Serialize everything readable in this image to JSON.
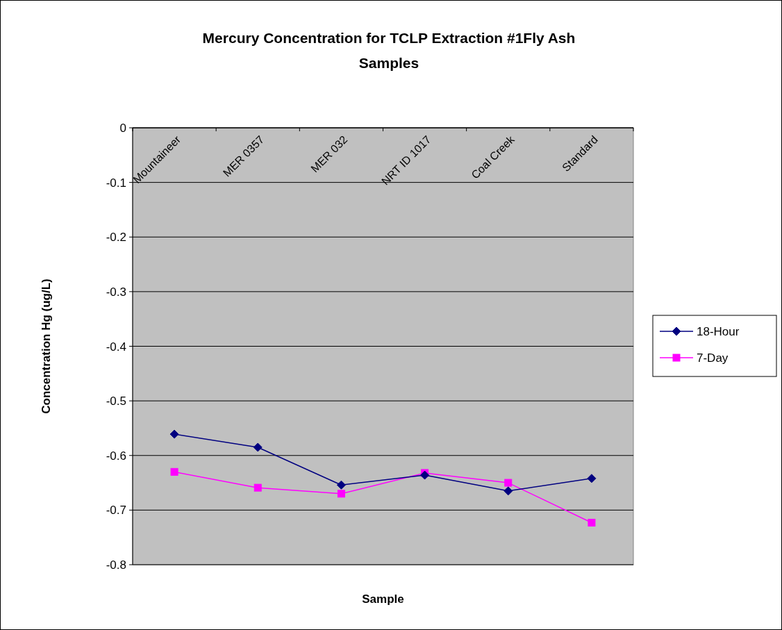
{
  "chart_data": {
    "type": "line",
    "title": "Mercury Concentration for TCLP Extraction #1Fly Ash Samples",
    "xlabel": "Sample",
    "ylabel": "Concentration Hg (ug/L)",
    "categories": [
      "Mountaineer",
      "MER 0357",
      "MER 032",
      "NRT ID 1017",
      "Coal Creek",
      "Standard"
    ],
    "series": [
      {
        "name": "18-Hour",
        "color": "#000080",
        "marker": "diamond",
        "values": [
          -0.561,
          -0.585,
          -0.654,
          -0.636,
          -0.665,
          -0.642
        ]
      },
      {
        "name": "7-Day",
        "color": "#ff00ff",
        "marker": "square",
        "values": [
          -0.63,
          -0.659,
          -0.67,
          -0.632,
          -0.65,
          -0.723
        ]
      }
    ],
    "ylim": [
      -0.8,
      0
    ],
    "yticks": [
      -0.8,
      -0.7,
      -0.6,
      -0.5,
      -0.4,
      -0.3,
      -0.2,
      -0.1,
      0
    ],
    "grid": "y",
    "legend": "right"
  }
}
